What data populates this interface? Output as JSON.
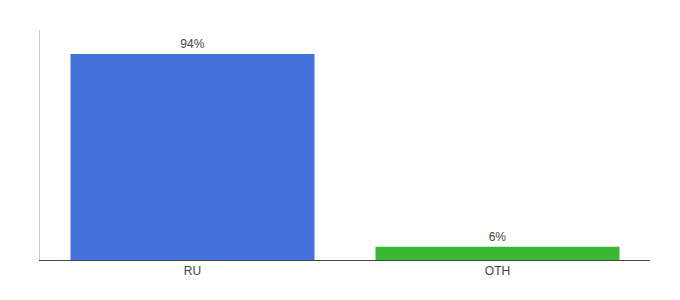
{
  "chart_data": {
    "type": "bar",
    "categories": [
      "RU",
      "OTH"
    ],
    "values": [
      94,
      6
    ],
    "value_labels": [
      "94%",
      "6%"
    ],
    "data_labels": true,
    "colors": [
      "#4472db",
      "#3cb934"
    ],
    "ylim": [
      0,
      105
    ],
    "tick_labels": "x",
    "grid": false
  }
}
